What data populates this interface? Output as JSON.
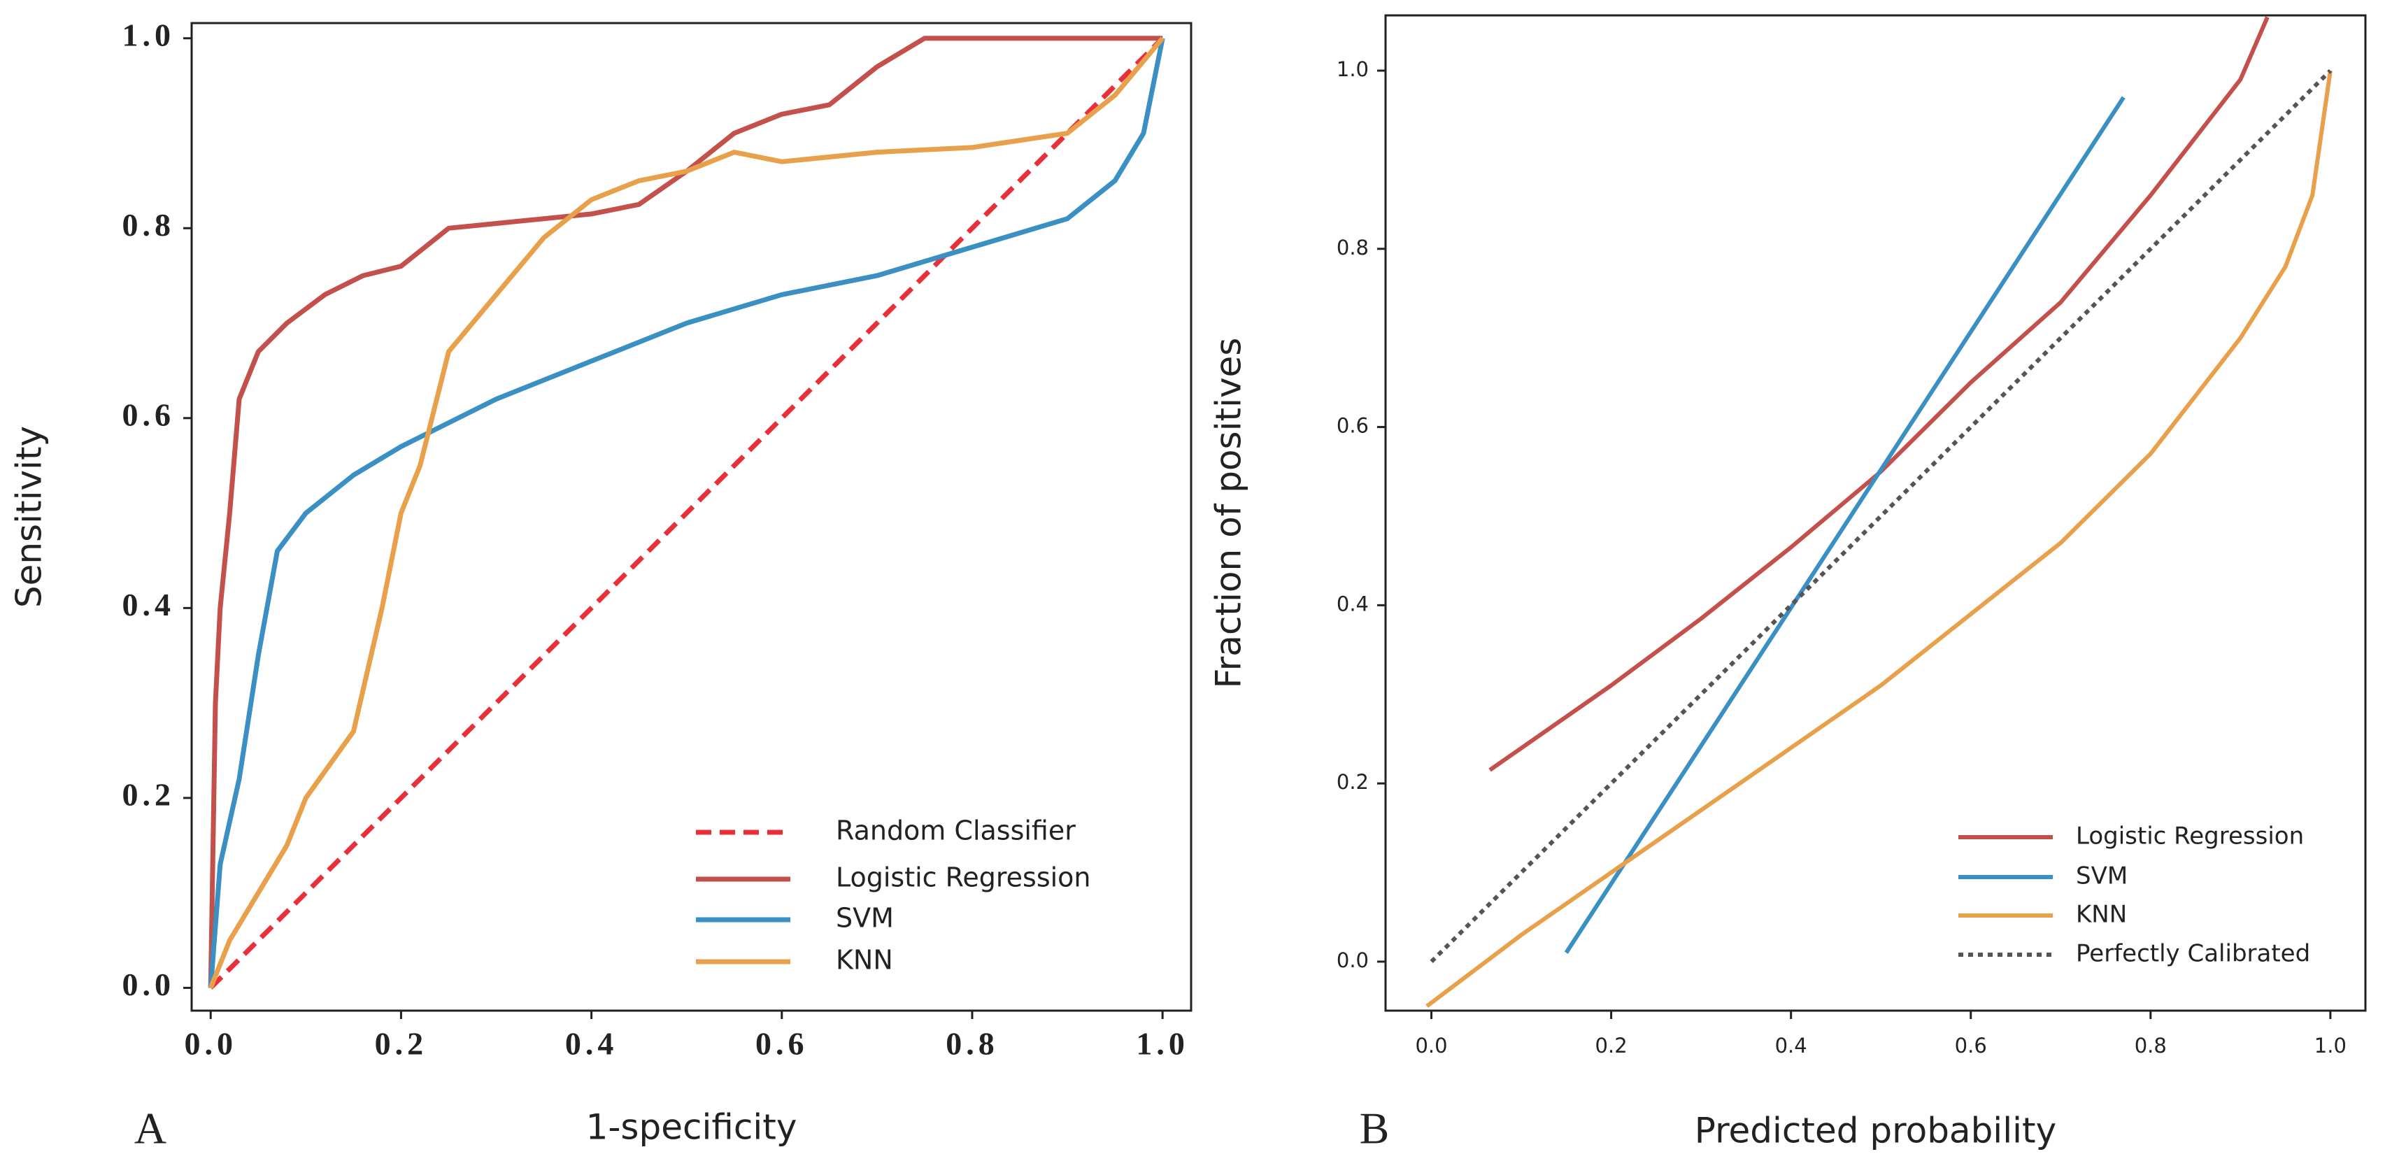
{
  "chart_data": [
    {
      "type": "line",
      "panel_label": "A",
      "xlabel": "1-specificity",
      "ylabel": "Sensitivity",
      "xlim": [
        -0.02,
        1.03
      ],
      "ylim": [
        -0.024,
        1.016
      ],
      "xticks": [
        {
          "value": 0,
          "label": "0.0"
        },
        0.2,
        0.4,
        0.6,
        0.8,
        {
          "value": 1,
          "label": "1.0"
        }
      ],
      "yticks": [
        {
          "value": 0,
          "label": "0.0"
        },
        0.2,
        0.4,
        0.6,
        0.8,
        {
          "value": 1,
          "label": "1.0"
        }
      ],
      "legend": "lower right",
      "series": [
        {
          "name": "Random Classifier",
          "color": "#e8303a",
          "linestyle": "dashed",
          "x": [
            0,
            1
          ],
          "y": [
            0,
            1
          ]
        },
        {
          "name": "Logistic Regression",
          "color": "#c4504c",
          "linestyle": "solid",
          "x": [
            0,
            0.005,
            0.01,
            0.02,
            0.03,
            0.05,
            0.08,
            0.12,
            0.16,
            0.2,
            0.25,
            0.3,
            0.4,
            0.45,
            0.5,
            0.55,
            0.6,
            0.65,
            0.7,
            0.75,
            0.8,
            0.9,
            1.0
          ],
          "y": [
            0,
            0.3,
            0.4,
            0.5,
            0.62,
            0.67,
            0.7,
            0.73,
            0.75,
            0.76,
            0.8,
            0.805,
            0.815,
            0.825,
            0.86,
            0.9,
            0.92,
            0.93,
            0.97,
            1.0,
            1.0,
            1.0,
            1.0
          ]
        },
        {
          "name": "SVM",
          "color": "#3a8fc3",
          "linestyle": "solid",
          "x": [
            0,
            0.01,
            0.03,
            0.05,
            0.07,
            0.1,
            0.15,
            0.2,
            0.3,
            0.4,
            0.5,
            0.6,
            0.7,
            0.8,
            0.9,
            0.95,
            0.98,
            1.0
          ],
          "y": [
            0,
            0.13,
            0.22,
            0.35,
            0.46,
            0.5,
            0.54,
            0.57,
            0.62,
            0.66,
            0.7,
            0.73,
            0.75,
            0.78,
            0.81,
            0.85,
            0.9,
            1.0
          ]
        },
        {
          "name": "KNN",
          "color": "#e8a04a",
          "linestyle": "solid",
          "x": [
            0,
            0.02,
            0.05,
            0.08,
            0.1,
            0.15,
            0.18,
            0.2,
            0.22,
            0.25,
            0.3,
            0.35,
            0.4,
            0.45,
            0.5,
            0.55,
            0.6,
            0.7,
            0.8,
            0.9,
            0.95,
            1.0
          ],
          "y": [
            0,
            0.05,
            0.1,
            0.15,
            0.2,
            0.27,
            0.4,
            0.5,
            0.55,
            0.67,
            0.73,
            0.79,
            0.83,
            0.85,
            0.86,
            0.88,
            0.87,
            0.88,
            0.885,
            0.9,
            0.94,
            1.0
          ]
        }
      ]
    },
    {
      "type": "line",
      "panel_label": "B",
      "xlabel": "Predicted probability",
      "ylabel": "Fraction of positives",
      "xlim": [
        -0.051,
        1.039
      ],
      "ylim": [
        -0.055,
        1.062
      ],
      "xticks": [
        {
          "value": 0,
          "label": "0.0"
        },
        0.2,
        0.4,
        0.6,
        0.8,
        {
          "value": 1,
          "label": "1.0"
        }
      ],
      "yticks": [
        {
          "value": 0,
          "label": "0.0"
        },
        0.2,
        0.4,
        0.6,
        0.8,
        {
          "value": 1,
          "label": "1.0"
        }
      ],
      "legend": "lower right",
      "series": [
        {
          "name": "Logistic Regression",
          "color": "#c4504c",
          "linestyle": "solid",
          "x": [
            0.065,
            0.2,
            0.3,
            0.4,
            0.5,
            0.6,
            0.7,
            0.8,
            0.9,
            0.93
          ],
          "y": [
            0.215,
            0.31,
            0.385,
            0.465,
            0.55,
            0.65,
            0.74,
            0.86,
            0.99,
            1.06
          ]
        },
        {
          "name": "SVM",
          "color": "#3a8fc3",
          "linestyle": "solid",
          "x": [
            0.15,
            0.77
          ],
          "y": [
            0.01,
            0.97
          ]
        },
        {
          "name": "KNN",
          "color": "#e8a04a",
          "linestyle": "solid",
          "x": [
            -0.005,
            0.1,
            0.2,
            0.3,
            0.4,
            0.5,
            0.6,
            0.7,
            0.8,
            0.9,
            0.95,
            0.98,
            1.0
          ],
          "y": [
            -0.05,
            0.03,
            0.1,
            0.17,
            0.24,
            0.31,
            0.39,
            0.47,
            0.57,
            0.7,
            0.78,
            0.86,
            1.0
          ]
        },
        {
          "name": "Perfectly Calibrated",
          "color": "#555555",
          "linestyle": "dotted",
          "x": [
            0,
            1
          ],
          "y": [
            0,
            1
          ]
        }
      ]
    }
  ]
}
